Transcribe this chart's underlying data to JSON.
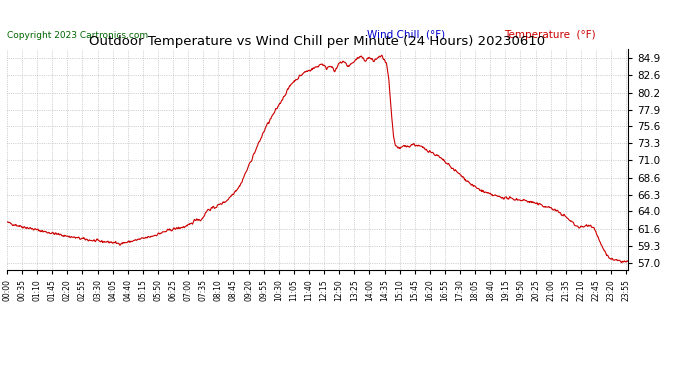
{
  "title": "Outdoor Temperature vs Wind Chill per Minute (24 Hours) 20230610",
  "copyright": "Copyright 2023 Cartronics.com",
  "legend_wind_chill": "Wind Chill  (°F)",
  "legend_temperature": "Temperature  (°F)",
  "line_color": "#cc0000",
  "wind_chill_color": "#0000cc",
  "temperature_color": "#cc0000",
  "bg_color": "#ffffff",
  "grid_color": "#aaaaaa",
  "yticks": [
    57.0,
    59.3,
    61.6,
    64.0,
    66.3,
    68.6,
    71.0,
    73.3,
    75.6,
    77.9,
    80.2,
    82.6,
    84.9
  ],
  "ylim": [
    56.0,
    86.2
  ],
  "total_minutes": 1440
}
